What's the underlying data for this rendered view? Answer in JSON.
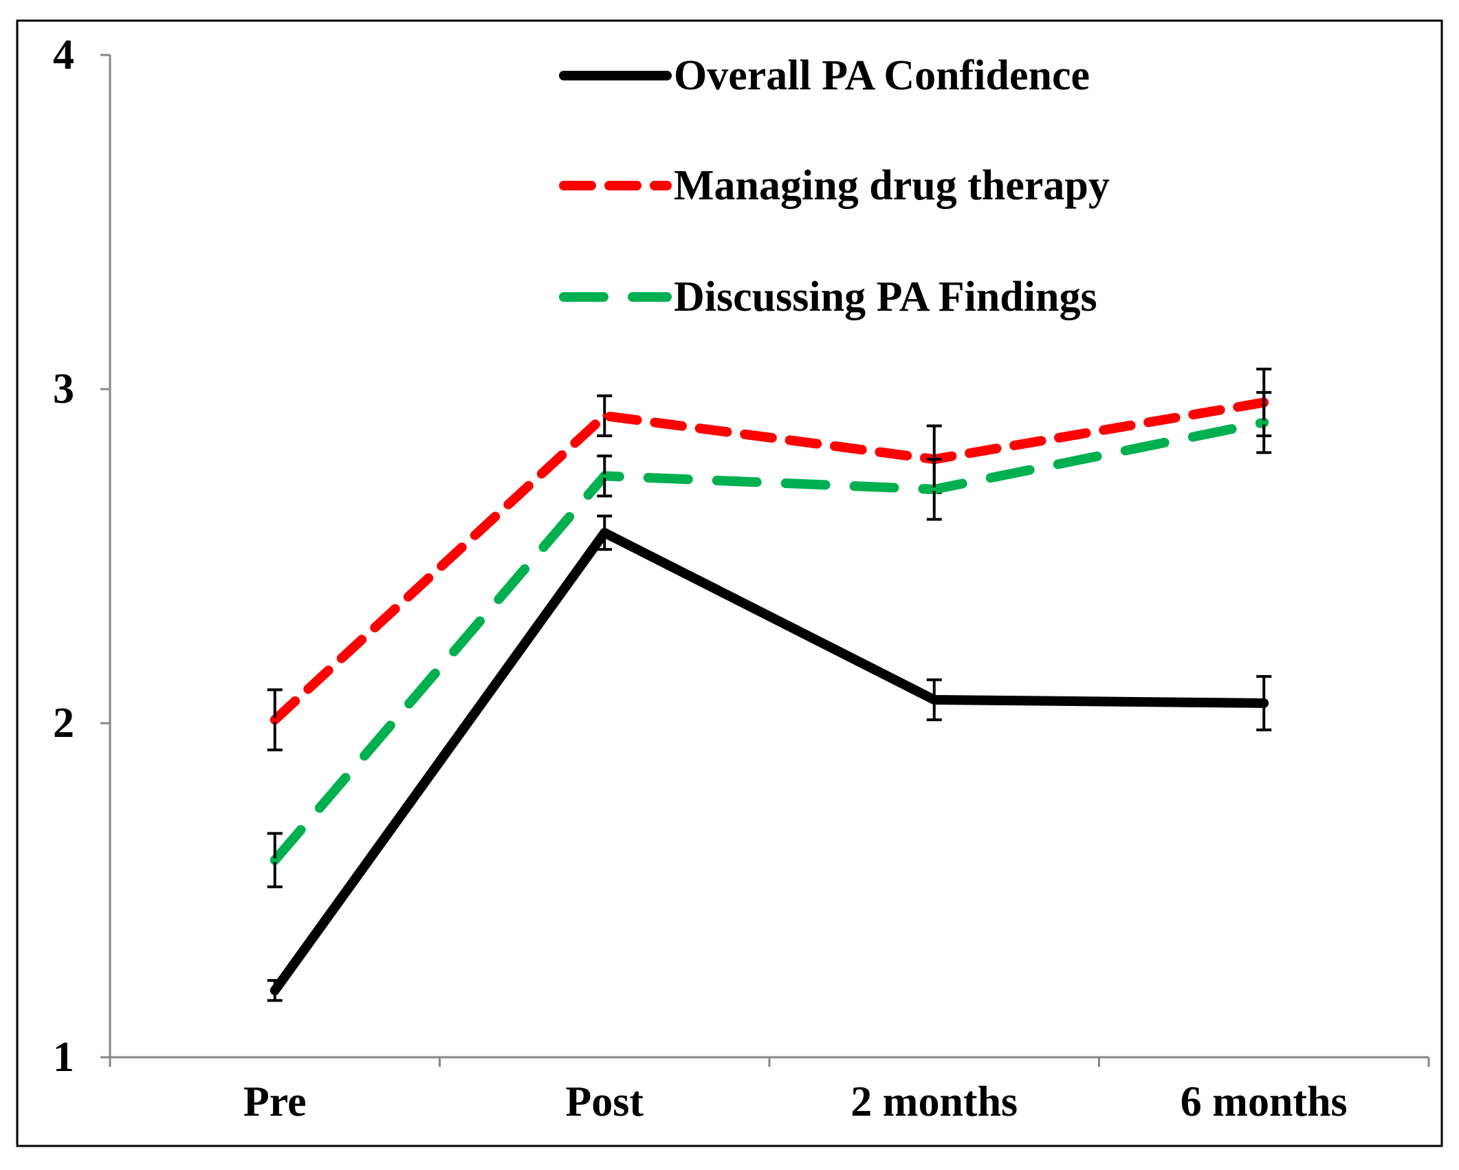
{
  "chart_data": {
    "type": "line",
    "title": "",
    "xlabel": "",
    "ylabel": "",
    "categories": [
      "Pre",
      "Post",
      "2 months",
      "6 months"
    ],
    "ylim": [
      1,
      4
    ],
    "yticks": [
      "1",
      "2",
      "3",
      "4"
    ],
    "grid": false,
    "legend_position": "top-center",
    "series": [
      {
        "name": "Overall PA Confidence",
        "values": [
          1.2,
          2.57,
          2.07,
          2.06
        ],
        "error": [
          0.03,
          0.05,
          0.06,
          0.08
        ],
        "color": "#000000",
        "line_style": "solid"
      },
      {
        "name": "Managing drug therapy",
        "values": [
          2.01,
          2.92,
          2.79,
          2.96
        ],
        "error": [
          0.09,
          0.06,
          0.1,
          0.1
        ],
        "color": "#ff0000",
        "line_style": "dashed"
      },
      {
        "name": "Discussing PA Findings",
        "values": [
          1.59,
          2.74,
          2.7,
          2.9
        ],
        "error": [
          0.08,
          0.06,
          0.09,
          0.09
        ],
        "color": "#00b050",
        "line_style": "long-dashed"
      }
    ]
  }
}
